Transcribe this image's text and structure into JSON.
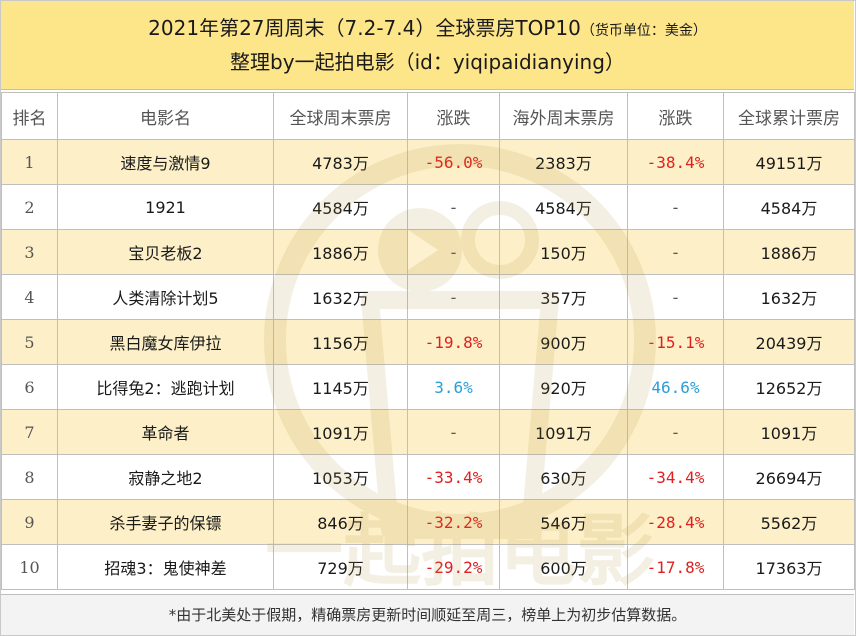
{
  "header": {
    "title": "2021年第27周周末（7.2-7.4）全球票房TOP10",
    "title_note": "（货币单位：美金）",
    "subtitle": "整理by一起拍电影（id：yiqipaidianying）"
  },
  "table": {
    "columns": [
      "排名",
      "电影名",
      "全球周末票房",
      "涨跌",
      "海外周末票房",
      "涨跌",
      "全球累计票房"
    ],
    "rows": [
      {
        "rank": "1",
        "title": "速度与激情9",
        "global_weekend": "4783万",
        "global_change": "-56.0%",
        "overseas_weekend": "2383万",
        "overseas_change": "-38.4%",
        "global_total": "49151万"
      },
      {
        "rank": "2",
        "title": "1921",
        "global_weekend": "4584万",
        "global_change": "-",
        "overseas_weekend": "4584万",
        "overseas_change": "-",
        "global_total": "4584万"
      },
      {
        "rank": "3",
        "title": "宝贝老板2",
        "global_weekend": "1886万",
        "global_change": "-",
        "overseas_weekend": "150万",
        "overseas_change": "-",
        "global_total": "1886万"
      },
      {
        "rank": "4",
        "title": "人类清除计划5",
        "global_weekend": "1632万",
        "global_change": "-",
        "overseas_weekend": "357万",
        "overseas_change": "-",
        "global_total": "1632万"
      },
      {
        "rank": "5",
        "title": "黑白魔女库伊拉",
        "global_weekend": "1156万",
        "global_change": "-19.8%",
        "overseas_weekend": "900万",
        "overseas_change": "-15.1%",
        "global_total": "20439万"
      },
      {
        "rank": "6",
        "title": "比得兔2：逃跑计划",
        "global_weekend": "1145万",
        "global_change": "3.6%",
        "overseas_weekend": "920万",
        "overseas_change": "46.6%",
        "global_total": "12652万"
      },
      {
        "rank": "7",
        "title": "革命者",
        "global_weekend": "1091万",
        "global_change": "-",
        "overseas_weekend": "1091万",
        "overseas_change": "-",
        "global_total": "1091万"
      },
      {
        "rank": "8",
        "title": "寂静之地2",
        "global_weekend": "1053万",
        "global_change": "-33.4%",
        "overseas_weekend": "630万",
        "overseas_change": "-34.4%",
        "global_total": "26694万"
      },
      {
        "rank": "9",
        "title": "杀手妻子的保镖",
        "global_weekend": "846万",
        "global_change": "-32.2%",
        "overseas_weekend": "546万",
        "overseas_change": "-28.4%",
        "global_total": "5562万"
      },
      {
        "rank": "10",
        "title": "招魂3：鬼使神差",
        "global_weekend": "729万",
        "global_change": "-29.2%",
        "overseas_weekend": "600万",
        "overseas_change": "-17.8%",
        "global_total": "17363万"
      }
    ]
  },
  "footer": {
    "note": "*由于北美处于假期，精确票房更新时间顺延至周三，榜单上为初步估算数据。"
  },
  "watermark": {
    "text": "一起拍电影"
  },
  "colors": {
    "header_bg": "#fde68a",
    "odd_row_bg": "#fdf0c8",
    "negative": "#e02020",
    "positive": "#2a9fd6"
  }
}
